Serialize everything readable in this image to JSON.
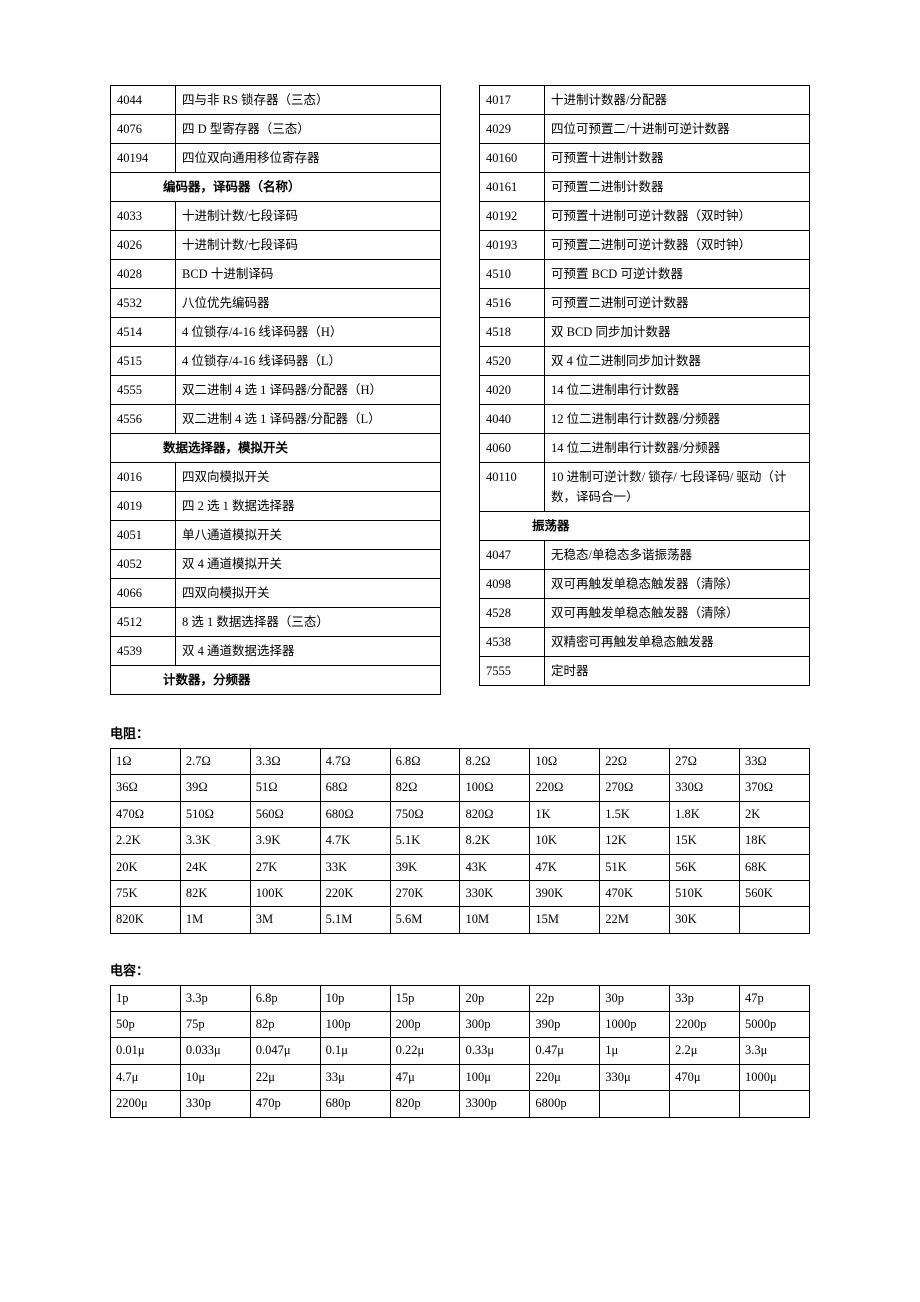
{
  "left_table": {
    "rows": [
      {
        "code": "4044",
        "desc": "四与非 RS 锁存器（三态）"
      },
      {
        "code": "4076",
        "desc": "四 D 型寄存器（三态）"
      },
      {
        "code": "40194",
        "desc": "四位双向通用移位寄存器"
      },
      {
        "section": "编码器，译码器（名称）"
      },
      {
        "code": "4033",
        "desc": "十进制计数/七段译码"
      },
      {
        "code": "4026",
        "desc": "十进制计数/七段译码"
      },
      {
        "code": "4028",
        "desc": "BCD 十进制译码"
      },
      {
        "code": "4532",
        "desc": "八位优先编码器"
      },
      {
        "code": "4514",
        "desc": "4 位锁存/4-16 线译码器（H）"
      },
      {
        "code": "4515",
        "desc": "4 位锁存/4-16 线译码器（L）"
      },
      {
        "code": "4555",
        "desc": "双二进制 4 选 1 译码器/分配器（H）"
      },
      {
        "code": "4556",
        "desc": "双二进制 4 选 1 译码器/分配器（L）"
      },
      {
        "section": "数据选择器，模拟开关"
      },
      {
        "code": "4016",
        "desc": "四双向模拟开关"
      },
      {
        "code": "4019",
        "desc": "四 2 选 1 数据选择器"
      },
      {
        "code": "4051",
        "desc": "单八通道模拟开关"
      },
      {
        "code": "4052",
        "desc": "双 4 通道模拟开关"
      },
      {
        "code": "4066",
        "desc": "四双向模拟开关"
      },
      {
        "code": "4512",
        "desc": "8 选 1 数据选择器（三态）"
      },
      {
        "code": "4539",
        "desc": "双 4 通道数据选择器"
      },
      {
        "section": "计数器，分频器"
      }
    ]
  },
  "right_table": {
    "rows": [
      {
        "code": "4017",
        "desc": "十进制计数器/分配器"
      },
      {
        "code": "4029",
        "desc": "四位可预置二/十进制可逆计数器"
      },
      {
        "code": "40160",
        "desc": "可预置十进制计数器"
      },
      {
        "code": "40161",
        "desc": "可预置二进制计数器"
      },
      {
        "code": "40192",
        "desc": "可预置十进制可逆计数器（双时钟）"
      },
      {
        "code": "40193",
        "desc": "可预置二进制可逆计数器（双时钟）"
      },
      {
        "code": "4510",
        "desc": "可预置 BCD 可逆计数器"
      },
      {
        "code": "4516",
        "desc": "可预置二进制可逆计数器"
      },
      {
        "code": "4518",
        "desc": "双 BCD 同步加计数器"
      },
      {
        "code": "4520",
        "desc": "双 4 位二进制同步加计数器"
      },
      {
        "code": "4020",
        "desc": "14 位二进制串行计数器"
      },
      {
        "code": "4040",
        "desc": "12 位二进制串行计数器/分频器"
      },
      {
        "code": "4060",
        "desc": "14 位二进制串行计数器/分频器"
      },
      {
        "code": "40110",
        "desc": "10 进制可逆计数/ 锁存/ 七段译码/ 驱动（计数，译码合一）"
      },
      {
        "section": "振荡器"
      },
      {
        "code": "4047",
        "desc": "无稳态/单稳态多谐振荡器"
      },
      {
        "code": "4098",
        "desc": "双可再触发单稳态触发器（清除）"
      },
      {
        "code": "4528",
        "desc": "双可再触发单稳态触发器（清除）"
      },
      {
        "code": "4538",
        "desc": "双精密可再触发单稳态触发器"
      },
      {
        "code": "7555",
        "desc": "定时器"
      }
    ]
  },
  "resistor": {
    "heading": "电阻：",
    "rows": [
      [
        "1Ω",
        "2.7Ω",
        "3.3Ω",
        "4.7Ω",
        "6.8Ω",
        "8.2Ω",
        "10Ω",
        "22Ω",
        "27Ω",
        "33Ω"
      ],
      [
        "36Ω",
        "39Ω",
        "51Ω",
        "68Ω",
        "82Ω",
        "100Ω",
        "220Ω",
        "270Ω",
        "330Ω",
        "370Ω"
      ],
      [
        "470Ω",
        "510Ω",
        "560Ω",
        "680Ω",
        "750Ω",
        "820Ω",
        "1K",
        "1.5K",
        "1.8K",
        "2K"
      ],
      [
        "2.2K",
        "3.3K",
        "3.9K",
        "4.7K",
        "5.1K",
        "8.2K",
        "10K",
        "12K",
        "15K",
        "18K"
      ],
      [
        "20K",
        "24K",
        "27K",
        "33K",
        "39K",
        "43K",
        "47K",
        "51K",
        "56K",
        "68K"
      ],
      [
        "75K",
        "82K",
        "100K",
        "220K",
        "270K",
        "330K",
        "390K",
        "470K",
        "510K",
        "560K"
      ],
      [
        "820K",
        "1M",
        "3M",
        "5.1M",
        "5.6M",
        "10M",
        "15M",
        "22M",
        "30K",
        ""
      ]
    ]
  },
  "capacitor": {
    "heading": "电容：",
    "rows": [
      [
        "1p",
        "3.3p",
        "6.8p",
        "10p",
        "15p",
        "20p",
        "22p",
        "30p",
        "33p",
        "47p"
      ],
      [
        "50p",
        "75p",
        "82p",
        "100p",
        "200p",
        "300p",
        "390p",
        "1000p",
        "2200p",
        "5000p"
      ],
      [
        "0.01μ",
        "0.033μ",
        "0.047μ",
        "0.1μ",
        "0.22μ",
        "0.33μ",
        "0.47μ",
        "1μ",
        "2.2μ",
        "3.3μ"
      ],
      [
        "4.7μ",
        "10μ",
        "22μ",
        "33μ",
        "47μ",
        "100μ",
        "220μ",
        "330μ",
        "470μ",
        "1000μ"
      ],
      [
        "2200μ",
        "330p",
        "470p",
        "680p",
        "820p",
        "3300p",
        "6800p",
        "",
        "",
        ""
      ]
    ]
  }
}
